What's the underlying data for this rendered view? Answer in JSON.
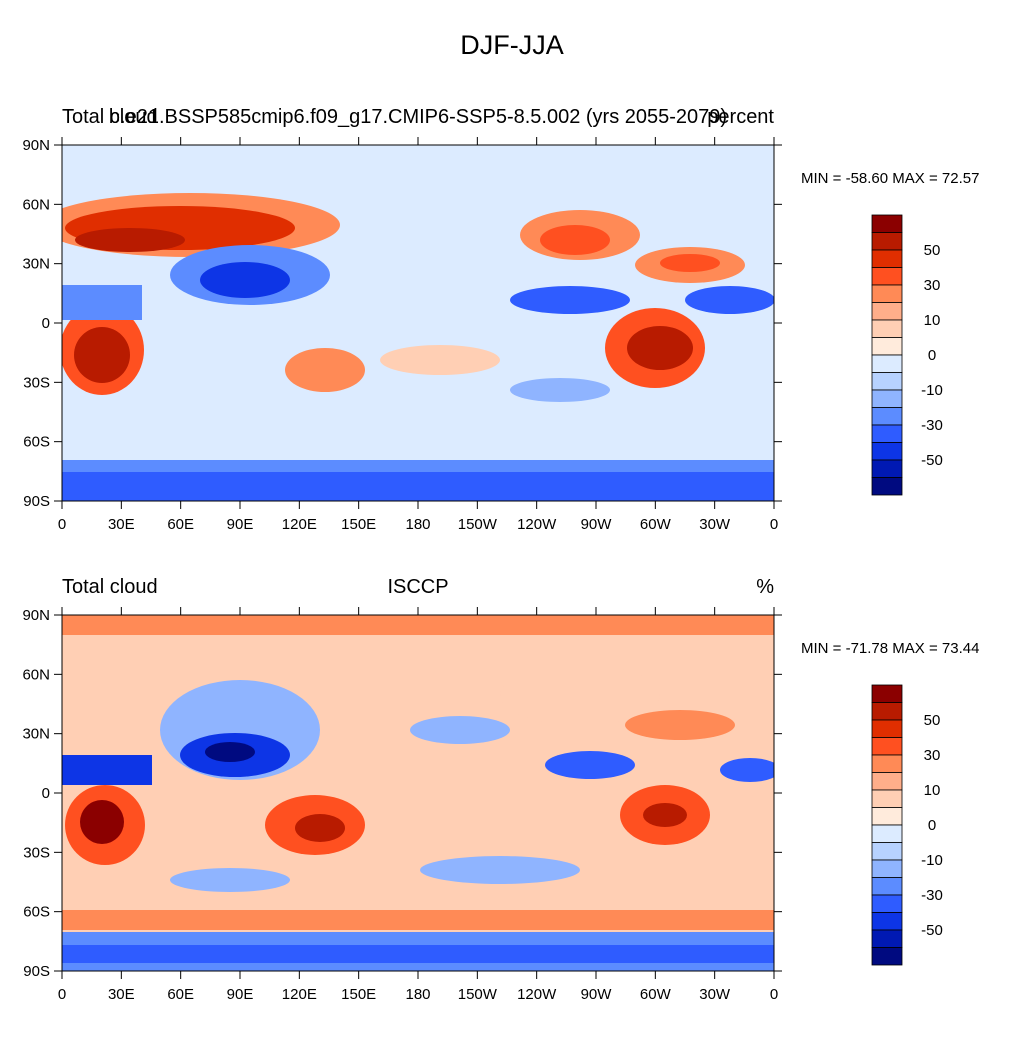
{
  "title": "DJF-JJA",
  "scale": {
    "colors": [
      "#8b0000",
      "#b81b00",
      "#e02e00",
      "#ff5020",
      "#ff8a56",
      "#ffae8a",
      "#ffcfb4",
      "#ffebdc",
      "#dcebff",
      "#b7d2ff",
      "#8fb4ff",
      "#5c8cff",
      "#2f5cff",
      "#0d35e6",
      "#0019b3",
      "#000a80"
    ],
    "labels": [
      "50",
      "30",
      "10",
      "0",
      "-10",
      "-30",
      "-50"
    ]
  },
  "axes": {
    "x_ticks": [
      "0",
      "30E",
      "60E",
      "90E",
      "120E",
      "150E",
      "180",
      "150W",
      "120W",
      "90W",
      "60W",
      "30W",
      "0"
    ],
    "y_ticks": [
      "90N",
      "60N",
      "30N",
      "0",
      "30S",
      "60S",
      "90S"
    ]
  },
  "panels": [
    {
      "left_title": "Total cloud",
      "center_title": "b.e21.BSSP585cmip6.f09_g17.CMIP6-SSP5-8.5.002 (yrs 2055-2079)",
      "right_title": "percent",
      "stats": "MIN = -58.60 MAX =  72.57"
    },
    {
      "left_title": "Total cloud",
      "center_title": "ISCCP",
      "right_title": "%",
      "stats": "MIN = -71.78 MAX =  73.44"
    }
  ]
}
